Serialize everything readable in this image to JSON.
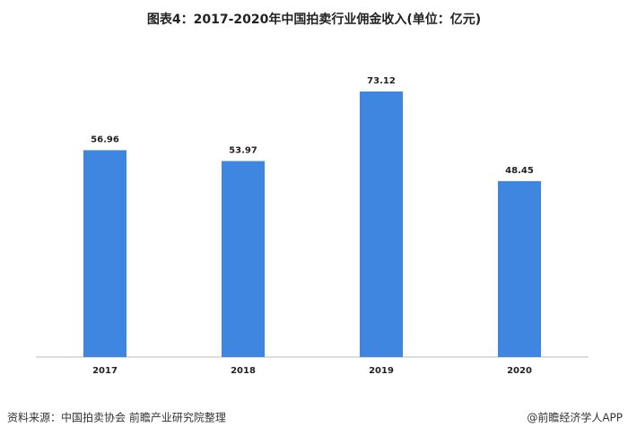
{
  "chart_data": {
    "type": "bar",
    "title": "图表4：2017-2020年中国拍卖行业佣金收入(单位：亿元)",
    "categories": [
      "2017",
      "2018",
      "2019",
      "2020"
    ],
    "values": [
      56.96,
      53.97,
      73.12,
      48.45
    ],
    "color": "#3e86e0"
  },
  "footer": {
    "source": "资料来源：中国拍卖协会 前瞻产业研究院整理",
    "credit": "@前瞻经济学人APP"
  }
}
